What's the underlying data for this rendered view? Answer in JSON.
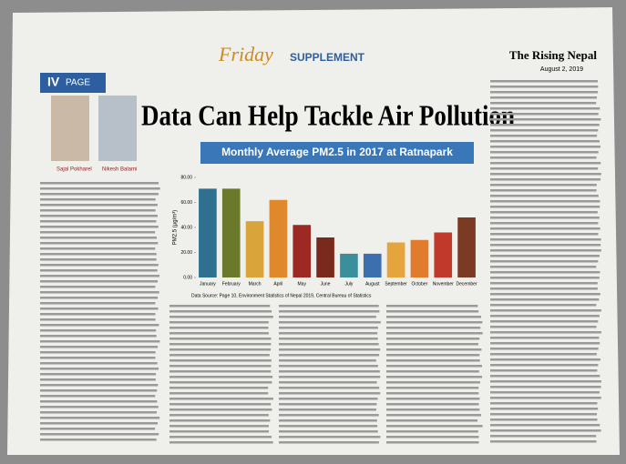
{
  "page": {
    "page_tag": {
      "number": "IV",
      "word": "PAGE"
    },
    "section": {
      "day": "Friday",
      "word": "SUPPLEMENT"
    },
    "masthead": {
      "name": "The Rising Nepal",
      "date": "August 2, 2019"
    },
    "headline": "Data Can Help Tackle Air Pollution",
    "authors": [
      "Sajal Pokharel",
      "Nikesh Balami"
    ]
  },
  "chart_data": {
    "type": "bar",
    "title": "Monthly Average PM2.5 in 2017 at Ratnapark",
    "y_label": "PM2.5 (µg/m³)",
    "source": "Data Source: Page 10, Environment Statistics of Nepal 2019, Central Bureau of Statistics",
    "categories": [
      "January",
      "February",
      "March",
      "April",
      "May",
      "June",
      "July",
      "August",
      "September",
      "October",
      "November",
      "December"
    ],
    "values": [
      71,
      71,
      45,
      62,
      42,
      32,
      19,
      19,
      28,
      30,
      36,
      48
    ],
    "colors": [
      "#2f6f8f",
      "#6b7a2a",
      "#d9a43a",
      "#e0892c",
      "#9c2a22",
      "#7a2a1c",
      "#3b8f9c",
      "#3c6fae",
      "#e6a43c",
      "#e07c2c",
      "#c0392b",
      "#7a3a24"
    ],
    "ylim": [
      0,
      80
    ],
    "yticks": [
      {
        "value": 0,
        "label": "0.00"
      },
      {
        "value": 20,
        "label": "20.00"
      },
      {
        "value": 40,
        "label": "40.00"
      },
      {
        "value": 60,
        "label": "60.00"
      },
      {
        "value": 80,
        "label": "80.00"
      }
    ]
  }
}
